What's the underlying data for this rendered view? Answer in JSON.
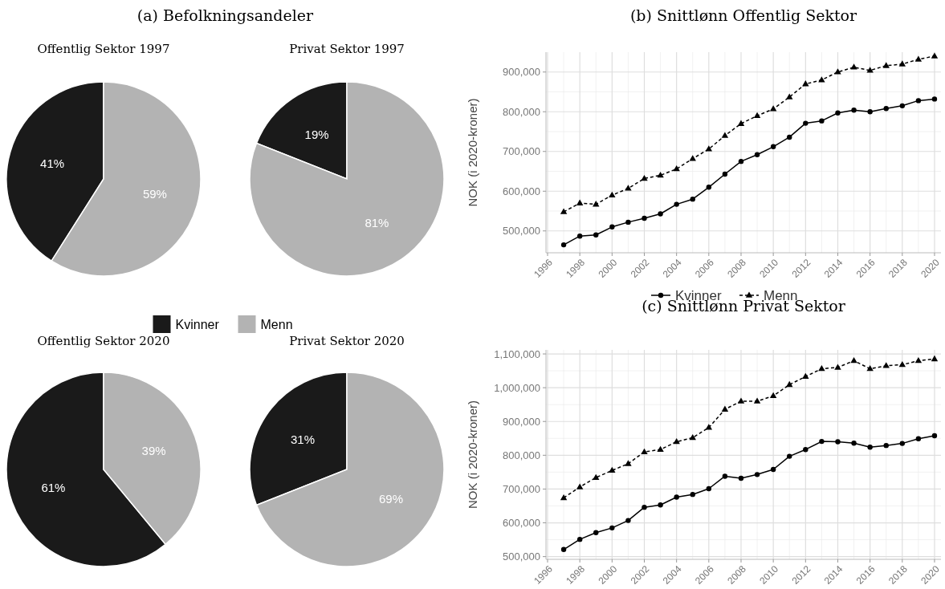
{
  "chart_data": [
    {
      "type": "pie",
      "title": "Offentlig Sektor 1997",
      "annotations": [
        "(a) Befolkningsandeler"
      ],
      "categories": [
        "Kvinner",
        "Menn"
      ],
      "values": [
        41,
        59
      ],
      "value_labels": [
        "41%",
        "59%"
      ],
      "colors": [
        "#1a1a1a",
        "#b3b3b3"
      ],
      "legend": "bottom"
    },
    {
      "type": "pie",
      "title": "Privat Sektor 1997",
      "categories": [
        null,
        null
      ],
      "values": [
        19,
        81
      ],
      "value_labels": [
        "19%",
        "81%"
      ],
      "colors": [
        "#1a1a1a",
        "#b3b3b3"
      ]
    },
    {
      "type": "pie",
      "title": "Offentlig Sektor 2020",
      "categories": [
        null,
        null
      ],
      "values": [
        61,
        39
      ],
      "value_labels": [
        "61%",
        "39%"
      ],
      "colors": [
        "#1a1a1a",
        "#b3b3b3"
      ]
    },
    {
      "type": "pie",
      "title": "Privat Sektor 2020",
      "categories": [
        null,
        null
      ],
      "values": [
        31,
        69
      ],
      "value_labels": [
        "31%",
        "69%"
      ],
      "colors": [
        "#1a1a1a",
        "#b3b3b3"
      ]
    },
    {
      "type": "line",
      "title": "(b) Snittlønn Offentlig Sektor",
      "ylabel": "NOK (i 2020-kroner)",
      "x": [
        1997,
        1998,
        1999,
        2000,
        2001,
        2002,
        2003,
        2004,
        2005,
        2006,
        2007,
        2008,
        2009,
        2010,
        2011,
        2012,
        2013,
        2014,
        2015,
        2016,
        2017,
        2018,
        2019,
        2020
      ],
      "xlim": [
        1995.9,
        2020.4
      ],
      "xticks": [
        1996,
        1998,
        2000,
        2002,
        2004,
        2006,
        2008,
        2010,
        2012,
        2014,
        2016,
        2018,
        2020
      ],
      "ylim": [
        445000,
        950000
      ],
      "yticks": [
        {
          "value": 500000,
          "label": "500,000"
        },
        {
          "value": 600000,
          "label": "600,000"
        },
        {
          "value": 700000,
          "label": "700,000"
        },
        {
          "value": 800000,
          "label": "800,000"
        },
        {
          "value": 900000,
          "label": "900,000"
        }
      ],
      "grid": true,
      "legend": "bottom",
      "series": [
        {
          "name": "Kvinner",
          "color": "#000000",
          "marker": "circle",
          "line_style": "solid",
          "values": [
            465000,
            487000,
            490000,
            510000,
            522000,
            532000,
            543000,
            567000,
            580000,
            610000,
            643000,
            675000,
            692000,
            712000,
            736000,
            771000,
            777000,
            797000,
            804000,
            800000,
            808000,
            815000,
            828000,
            832000
          ]
        },
        {
          "name": "Menn",
          "color": "#000000",
          "marker": "triangle",
          "line_style": "dashed",
          "values": [
            548000,
            570000,
            567000,
            590000,
            607000,
            632000,
            640000,
            656000,
            682000,
            706000,
            740000,
            770000,
            790000,
            807000,
            837000,
            870000,
            880000,
            900000,
            912000,
            904000,
            916000,
            920000,
            932000,
            940000
          ]
        }
      ]
    },
    {
      "type": "line",
      "title": "(c) Snittlønn Privat Sektor",
      "ylabel": "NOK (i 2020-kroner)",
      "x": [
        1997,
        1998,
        1999,
        2000,
        2001,
        2002,
        2003,
        2004,
        2005,
        2006,
        2007,
        2008,
        2009,
        2010,
        2011,
        2012,
        2013,
        2014,
        2015,
        2016,
        2017,
        2018,
        2019,
        2020
      ],
      "xlim": [
        1995.9,
        2020.4
      ],
      "xticks": [
        1996,
        1998,
        2000,
        2002,
        2004,
        2006,
        2008,
        2010,
        2012,
        2014,
        2016,
        2018,
        2020
      ],
      "ylim": [
        492000,
        1112000
      ],
      "yticks": [
        {
          "value": 500000,
          "label": "500,000"
        },
        {
          "value": 600000,
          "label": "600,000"
        },
        {
          "value": 700000,
          "label": "700,000"
        },
        {
          "value": 800000,
          "label": "800,000"
        },
        {
          "value": 900000,
          "label": "900,000"
        },
        {
          "value": 1000000,
          "label": "1,000,000"
        },
        {
          "value": 1100000,
          "label": "1,100,000"
        }
      ],
      "grid": true,
      "series": [
        {
          "color": "#000000",
          "marker": "circle",
          "line_style": "solid",
          "values": [
            521000,
            551000,
            571000,
            585000,
            607000,
            646000,
            653000,
            676000,
            684000,
            701000,
            738000,
            732000,
            743000,
            758000,
            797000,
            817000,
            841000,
            840000,
            836000,
            824000,
            829000,
            835000,
            849000,
            858000
          ]
        },
        {
          "color": "#000000",
          "marker": "triangle",
          "line_style": "dashed",
          "values": [
            674000,
            706000,
            734000,
            755000,
            775000,
            810000,
            817000,
            840000,
            852000,
            882000,
            936000,
            960000,
            960000,
            976000,
            1009000,
            1033000,
            1056000,
            1060000,
            1080000,
            1056000,
            1065000,
            1068000,
            1080000,
            1085000
          ]
        }
      ]
    }
  ]
}
